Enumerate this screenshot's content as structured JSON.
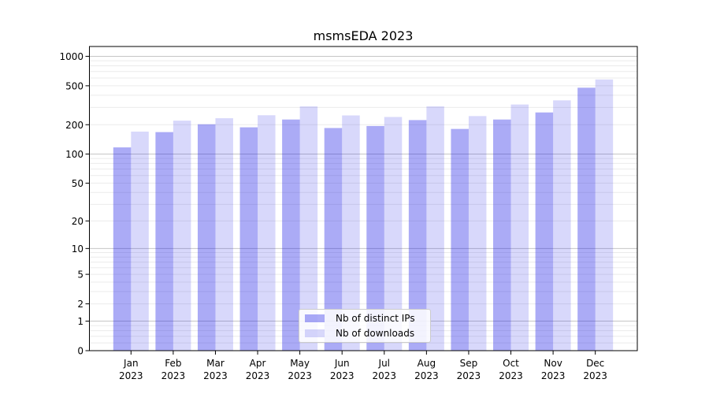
{
  "chart_data": {
    "type": "bar",
    "title": "msmsEDA 2023",
    "categories": [
      "Jan 2023",
      "Feb 2023",
      "Mar 2023",
      "Apr 2023",
      "May 2023",
      "Jun 2023",
      "Jul 2023",
      "Aug 2023",
      "Sep 2023",
      "Oct 2023",
      "Nov 2023",
      "Dec 2023"
    ],
    "series": [
      {
        "name": "Nb of distinct IPs",
        "values": [
          117,
          168,
          202,
          188,
          226,
          185,
          194,
          223,
          181,
          226,
          267,
          478
        ]
      },
      {
        "name": "Nb of downloads",
        "values": [
          170,
          220,
          233,
          250,
          308,
          249,
          240,
          308,
          245,
          322,
          355,
          580
        ]
      }
    ],
    "yscale": "log10(1+v)",
    "ylim": [
      0,
      1300
    ],
    "ytick_values": [
      1000,
      500,
      200,
      100,
      50,
      20,
      10,
      5,
      2,
      1,
      0
    ],
    "ytick_labels": [
      "1000",
      "500",
      "200",
      "100",
      "50",
      "20",
      "10",
      "5",
      "2",
      "1",
      "0"
    ],
    "xlabel": "",
    "ylabel": "",
    "grid": true,
    "legend_position": "lower center"
  },
  "legend": {
    "items": [
      {
        "label": "Nb of distinct IPs"
      },
      {
        "label": "Nb of downloads"
      }
    ]
  },
  "colors": {
    "bar_ips": "rgba(15,15,230,0.35)",
    "bar_downloads": "rgba(15,15,230,0.16)",
    "grid_major": "#c6c6c6",
    "grid_minor": "#ebebeb",
    "axis": "#000000",
    "background": "#ffffff"
  }
}
